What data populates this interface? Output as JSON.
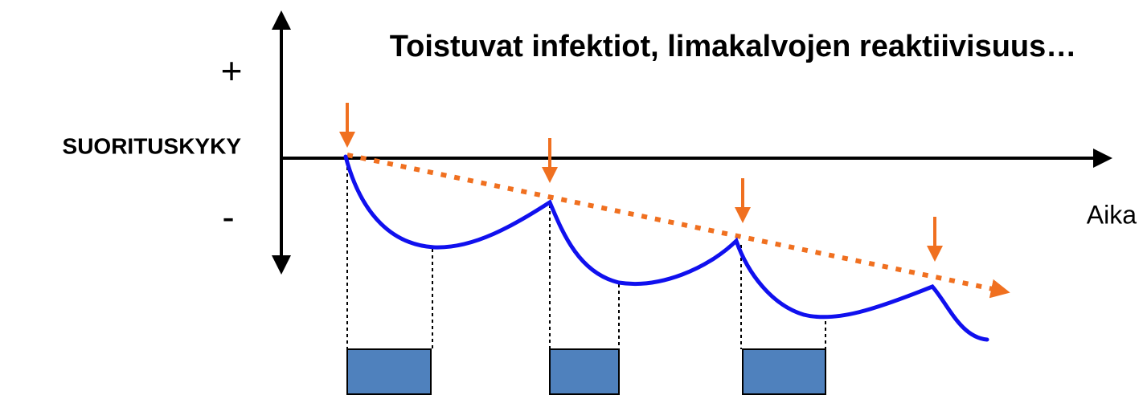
{
  "title": "Toistuvat infektiot, limakalvojen reaktiivisuus…",
  "y_axis": {
    "label": "SUORITUSKYKY",
    "plus": "+",
    "minus": "-"
  },
  "x_axis": {
    "label": "Aika"
  }
}
